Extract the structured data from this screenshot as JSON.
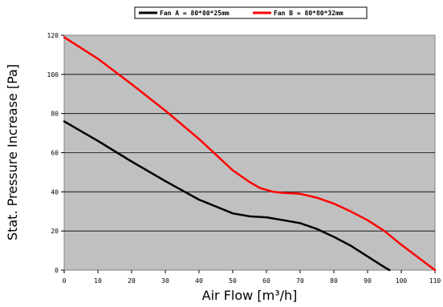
{
  "chart_data": {
    "type": "line",
    "xlabel": "Air Flow [m³/h]",
    "ylabel": "Stat. Pressure Increase [Pa]",
    "xlim": [
      0,
      110
    ],
    "ylim": [
      0,
      120
    ],
    "x_ticks": [
      0,
      10,
      20,
      30,
      40,
      50,
      60,
      70,
      80,
      90,
      100,
      110
    ],
    "y_ticks": [
      0,
      20,
      40,
      60,
      80,
      100,
      120
    ],
    "grid": "horizontal",
    "legend_position": "top-center",
    "plot_background": "#c0c0c0",
    "series": [
      {
        "name": "Fan A = 80*80*25mm",
        "color": "#000000",
        "points": [
          [
            0,
            76
          ],
          [
            10,
            66
          ],
          [
            20,
            55.5
          ],
          [
            30,
            45.5
          ],
          [
            40,
            36
          ],
          [
            45,
            32.5
          ],
          [
            50,
            29
          ],
          [
            55,
            27.5
          ],
          [
            60,
            27
          ],
          [
            65,
            25.5
          ],
          [
            70,
            24
          ],
          [
            75,
            21
          ],
          [
            80,
            17
          ],
          [
            85,
            12.5
          ],
          [
            90,
            7
          ],
          [
            95,
            1.5
          ],
          [
            96.5,
            0
          ]
        ]
      },
      {
        "name": "Fan B = 80*80*32mm",
        "color": "#ff0000",
        "points": [
          [
            0,
            119
          ],
          [
            10,
            108
          ],
          [
            20,
            95
          ],
          [
            30,
            81.5
          ],
          [
            40,
            67
          ],
          [
            45,
            59
          ],
          [
            50,
            51
          ],
          [
            55,
            45
          ],
          [
            58,
            42
          ],
          [
            62,
            40
          ],
          [
            65,
            39.5
          ],
          [
            70,
            39
          ],
          [
            75,
            37
          ],
          [
            80,
            34
          ],
          [
            85,
            30
          ],
          [
            90,
            25.5
          ],
          [
            95,
            20
          ],
          [
            100,
            13
          ],
          [
            105,
            6.5
          ],
          [
            110,
            0
          ]
        ]
      }
    ]
  }
}
